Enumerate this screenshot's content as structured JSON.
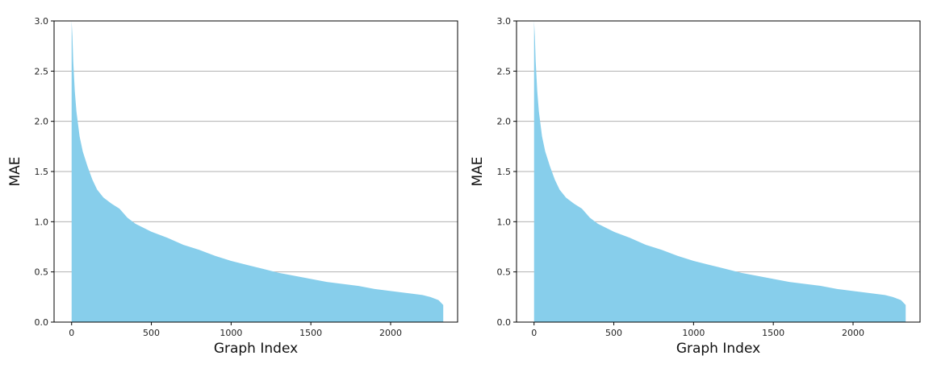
{
  "chart_data": [
    {
      "type": "area",
      "xlabel": "Graph Index",
      "ylabel": "MAE",
      "xlim": [
        -110,
        2420
      ],
      "ylim": [
        0,
        3.0
      ],
      "xticks": [
        0,
        500,
        1000,
        1500,
        2000
      ],
      "xtick_labels": [
        "0",
        "500",
        "1000",
        "1500",
        "2000"
      ],
      "yticks": [
        0.0,
        0.5,
        1.0,
        1.5,
        2.0,
        2.5,
        3.0
      ],
      "ytick_labels": [
        "0.0",
        "0.5",
        "1.0",
        "1.5",
        "2.0",
        "2.5",
        "3.0"
      ],
      "grid": "horizontal",
      "fill_color": "#87ceeb",
      "x": [
        0,
        5,
        10,
        20,
        30,
        50,
        70,
        100,
        130,
        160,
        200,
        250,
        300,
        350,
        400,
        500,
        600,
        700,
        800,
        900,
        1000,
        1100,
        1200,
        1300,
        1400,
        1500,
        1600,
        1700,
        1800,
        1900,
        2000,
        2100,
        2200,
        2250,
        2300,
        2330
      ],
      "y": [
        3.0,
        2.85,
        2.6,
        2.3,
        2.1,
        1.85,
        1.7,
        1.55,
        1.42,
        1.32,
        1.24,
        1.18,
        1.13,
        1.04,
        0.98,
        0.9,
        0.84,
        0.77,
        0.72,
        0.66,
        0.61,
        0.57,
        0.53,
        0.49,
        0.46,
        0.43,
        0.4,
        0.38,
        0.36,
        0.33,
        0.31,
        0.29,
        0.27,
        0.25,
        0.22,
        0.17
      ]
    },
    {
      "type": "area",
      "xlabel": "Graph Index",
      "ylabel": "MAE",
      "xlim": [
        -110,
        2420
      ],
      "ylim": [
        0,
        3.0
      ],
      "xticks": [
        0,
        500,
        1000,
        1500,
        2000
      ],
      "xtick_labels": [
        "0",
        "500",
        "1000",
        "1500",
        "2000"
      ],
      "yticks": [
        0.0,
        0.5,
        1.0,
        1.5,
        2.0,
        2.5,
        3.0
      ],
      "ytick_labels": [
        "0.0",
        "0.5",
        "1.0",
        "1.5",
        "2.0",
        "2.5",
        "3.0"
      ],
      "grid": "horizontal",
      "fill_color": "#87ceeb",
      "x": [
        0,
        5,
        10,
        20,
        30,
        50,
        70,
        100,
        130,
        160,
        200,
        250,
        300,
        350,
        400,
        500,
        600,
        700,
        800,
        900,
        1000,
        1100,
        1200,
        1300,
        1400,
        1500,
        1600,
        1700,
        1800,
        1900,
        2000,
        2100,
        2200,
        2250,
        2300,
        2330
      ],
      "y": [
        3.0,
        2.85,
        2.6,
        2.3,
        2.1,
        1.85,
        1.7,
        1.55,
        1.42,
        1.32,
        1.24,
        1.18,
        1.13,
        1.04,
        0.98,
        0.9,
        0.84,
        0.77,
        0.72,
        0.66,
        0.61,
        0.57,
        0.53,
        0.49,
        0.46,
        0.43,
        0.4,
        0.38,
        0.36,
        0.33,
        0.31,
        0.29,
        0.27,
        0.25,
        0.22,
        0.17
      ]
    }
  ]
}
